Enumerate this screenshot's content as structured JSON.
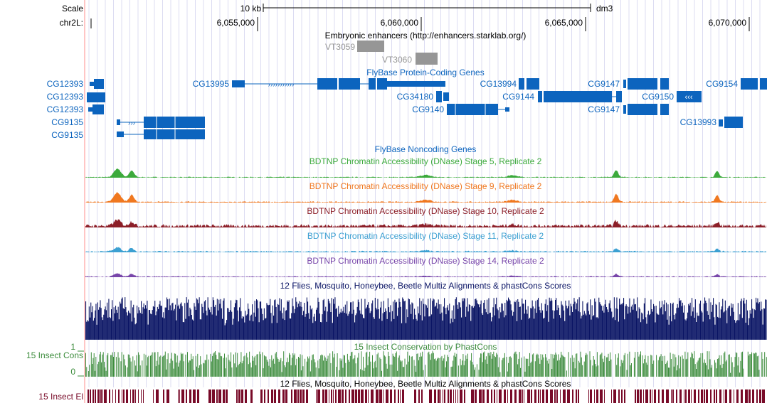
{
  "ruler": {
    "scale_label": "Scale",
    "chrom_label": "chr2L:",
    "scale_bar_label": "10 kb",
    "assembly": "dm3",
    "positions": [
      "6,055,000",
      "6,060,000",
      "6,065,000",
      "6,070,000"
    ]
  },
  "tracks": {
    "enhancers": {
      "title": "Embryonic enhancers (http://enhancers.starklab.org/)",
      "items": [
        "VT3059",
        "VT3060"
      ]
    },
    "genes": {
      "title": "FlyBase Protein-Coding Genes",
      "left_labels": [
        "CG12393",
        "CG12393",
        "CG12393",
        "CG9135",
        "CG9135"
      ],
      "gene_labels": [
        "CG13995",
        "CG13994",
        "CG34180",
        "CG9144",
        "CG9140",
        "CG9147",
        "CG9150",
        "CG9147",
        "CG9154",
        "CG13993"
      ]
    },
    "noncoding": {
      "title": "FlyBase Noncoding Genes"
    },
    "dnase": [
      {
        "title": "BDTNP Chromatin Accessibility (DNase) Stage 5, Replicate 2",
        "color": "#3caa3c"
      },
      {
        "title": "BDTNP Chromatin Accessibility (DNase) Stage 9, Replicate 2",
        "color": "#f07820"
      },
      {
        "title": "BDTNP Chromatin Accessibility (DNase) Stage 10, Replicate 2",
        "color": "#8c1e28"
      },
      {
        "title": "BDTNP Chromatin Accessibility (DNase) Stage 11, Replicate 2",
        "color": "#3ca0d2"
      },
      {
        "title": "BDTNP Chromatin Accessibility (DNase) Stage 14, Replicate 2",
        "color": "#7846aa"
      }
    ],
    "multiz": {
      "title": "12 Flies, Mosquito, Honeybee, Beetle Multiz Alignments & phastCons Scores"
    },
    "insect_cons": {
      "title": "15 Insect Conservation by PhastCons",
      "side_label": "15 Insect Cons",
      "y_max": "1",
      "y_min": "0"
    },
    "insect_el": {
      "title": "12 Flies, Mosquito, Honeybee, Beetle Multiz Alignments & phastCons Scores",
      "side_label": "15 Insect El"
    }
  },
  "colors": {
    "gene": "#0c64be",
    "enhancer": "#969696",
    "multiz": "#0a1464",
    "cons": "#3c8c3c",
    "elements": "#780a28",
    "grid": "#d2d2f0",
    "side_line": "#ff8c8c"
  }
}
